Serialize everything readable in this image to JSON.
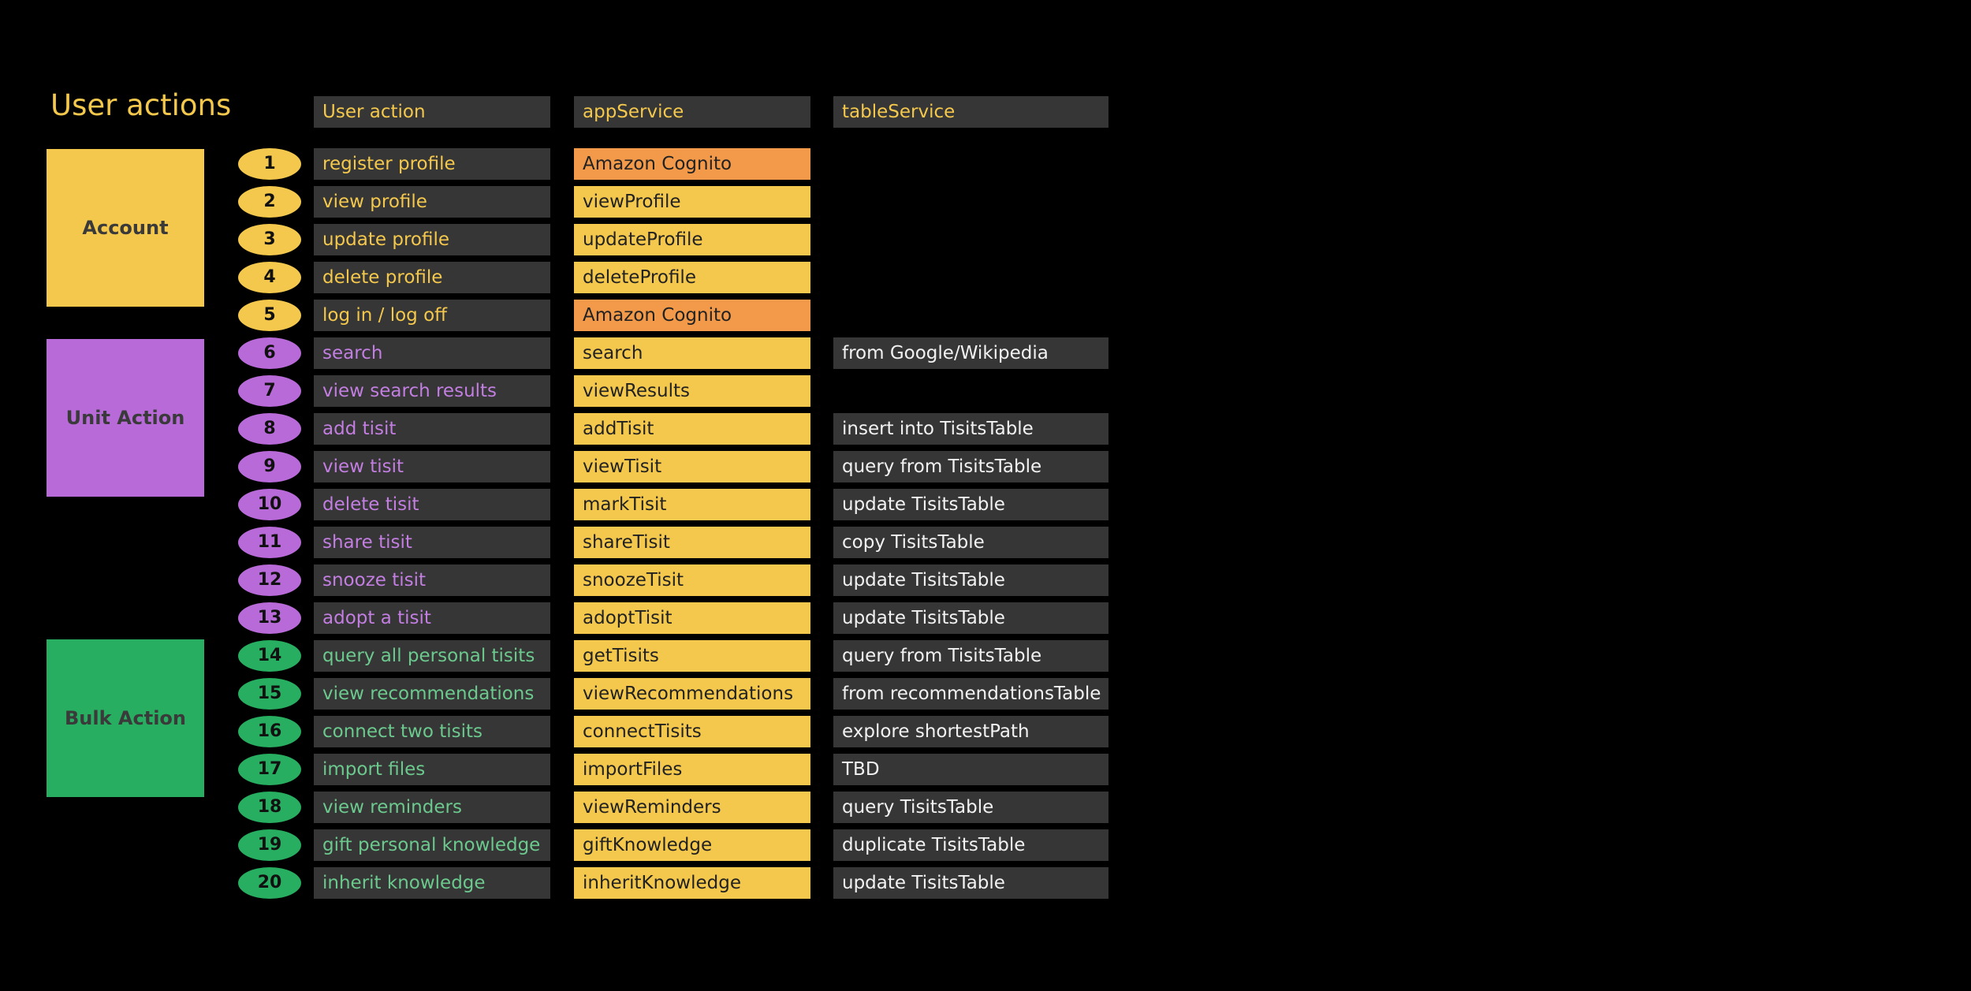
{
  "title": "User actions",
  "headers": {
    "action": "User action",
    "app": "appService",
    "table": "tableService"
  },
  "colors": {
    "account": "#f4c84c",
    "unit": "#b86ad9",
    "bulk": "#27ae60",
    "account_text": "#f4c84c",
    "unit_text": "#c27ee0",
    "bulk_text": "#6cc98e",
    "app_cell": "#f4c84c",
    "cognito_cell": "#f39a4a"
  },
  "categories": [
    {
      "key": "account",
      "label": "Account"
    },
    {
      "key": "unit",
      "label": "Unit Action"
    },
    {
      "key": "bulk",
      "label": "Bulk Action"
    }
  ],
  "rows": [
    {
      "n": "1",
      "group": "account",
      "action": "register profile",
      "app": "Amazon Cognito",
      "app_kind": "cognito",
      "table": ""
    },
    {
      "n": "2",
      "group": "account",
      "action": "view profile",
      "app": "viewProfile",
      "app_kind": "service",
      "table": ""
    },
    {
      "n": "3",
      "group": "account",
      "action": "update profile",
      "app": "updateProfile",
      "app_kind": "service",
      "table": ""
    },
    {
      "n": "4",
      "group": "account",
      "action": "delete profile",
      "app": "deleteProfile",
      "app_kind": "service",
      "table": ""
    },
    {
      "n": "5",
      "group": "account",
      "action": "log in / log off",
      "app": "Amazon Cognito",
      "app_kind": "cognito",
      "table": ""
    },
    {
      "n": "6",
      "group": "unit",
      "action": "search",
      "app": "search",
      "app_kind": "service",
      "table": "from Google/Wikipedia"
    },
    {
      "n": "7",
      "group": "unit",
      "action": "view search results",
      "app": "viewResults",
      "app_kind": "service",
      "table": ""
    },
    {
      "n": "8",
      "group": "unit",
      "action": "add tisit",
      "app": "addTisit",
      "app_kind": "service",
      "table": "insert into TisitsTable"
    },
    {
      "n": "9",
      "group": "unit",
      "action": "view tisit",
      "app": "viewTisit",
      "app_kind": "service",
      "table": "query from TisitsTable"
    },
    {
      "n": "10",
      "group": "unit",
      "action": "delete tisit",
      "app": "markTisit",
      "app_kind": "service",
      "table": "update TisitsTable"
    },
    {
      "n": "11",
      "group": "unit",
      "action": "share tisit",
      "app": "shareTisit",
      "app_kind": "service",
      "table": "copy TisitsTable"
    },
    {
      "n": "12",
      "group": "unit",
      "action": "snooze tisit",
      "app": "snoozeTisit",
      "app_kind": "service",
      "table": "update TisitsTable"
    },
    {
      "n": "13",
      "group": "unit",
      "action": "adopt a tisit",
      "app": "adoptTisit",
      "app_kind": "service",
      "table": "update TisitsTable"
    },
    {
      "n": "14",
      "group": "bulk",
      "action": "query all personal tisits",
      "app": "getTisits",
      "app_kind": "service",
      "table": "query from TisitsTable"
    },
    {
      "n": "15",
      "group": "bulk",
      "action": "view recommendations",
      "app": "viewRecommendations",
      "app_kind": "service",
      "table": "from recommendationsTable"
    },
    {
      "n": "16",
      "group": "bulk",
      "action": "connect two tisits",
      "app": "connectTisits",
      "app_kind": "service",
      "table": "explore shortestPath"
    },
    {
      "n": "17",
      "group": "bulk",
      "action": "import files",
      "app": "importFiles",
      "app_kind": "service",
      "table": "TBD"
    },
    {
      "n": "18",
      "group": "bulk",
      "action": "view reminders",
      "app": "viewReminders",
      "app_kind": "service",
      "table": "query TisitsTable"
    },
    {
      "n": "19",
      "group": "bulk",
      "action": "gift personal knowledge",
      "app": "giftKnowledge",
      "app_kind": "service",
      "table": "duplicate TisitsTable"
    },
    {
      "n": "20",
      "group": "bulk",
      "action": "inherit knowledge",
      "app": "inheritKnowledge",
      "app_kind": "service",
      "table": "update TisitsTable"
    }
  ]
}
